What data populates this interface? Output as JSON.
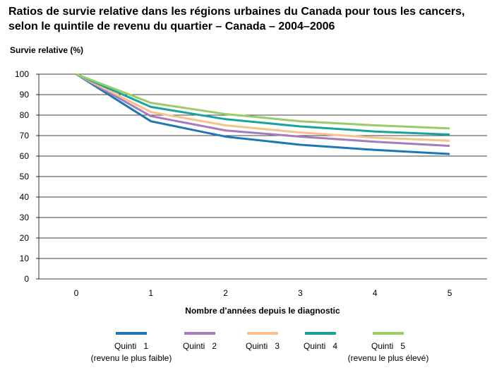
{
  "chart_data": {
    "type": "line",
    "title_lines": [
      "Ratios de survie relative dans les régions urbaines du Canada pour tous les cancers,",
      "selon le quintile de revenu du quartier – Canada – 2004–2006"
    ],
    "ylabel": "Survie relative (%)",
    "xlabel": "Nombre d’années depuis le diagnostic",
    "x": [
      0,
      1,
      2,
      3,
      4,
      5
    ],
    "xlim": [
      -0.5,
      5.5
    ],
    "ylim": [
      0,
      100
    ],
    "yticks": [
      0,
      10,
      20,
      30,
      40,
      50,
      60,
      70,
      80,
      90,
      100
    ],
    "grid": true,
    "legend_position": "bottom",
    "series": [
      {
        "name": "Quinti   1",
        "sublabel": "(revenu le plus faible)",
        "color": "#1f77b4",
        "values": [
          100,
          77,
          69.5,
          65.5,
          63,
          61
        ]
      },
      {
        "name": "Quinti   2",
        "sublabel": "",
        "color": "#a77bbd",
        "values": [
          100,
          79.5,
          72.5,
          69.5,
          67,
          65
        ]
      },
      {
        "name": "Quinti   3",
        "sublabel": "",
        "color": "#f7c28b",
        "values": [
          100,
          81.5,
          75,
          71.5,
          69,
          67.5
        ]
      },
      {
        "name": "Quinti   4",
        "sublabel": "",
        "color": "#1aa39a",
        "values": [
          100,
          84,
          78,
          74.5,
          72,
          70.5
        ]
      },
      {
        "name": "Quinti   5",
        "sublabel": "(revenu le plus élevé)",
        "color": "#9acd6a",
        "values": [
          100,
          86,
          80.5,
          77,
          75,
          73.5
        ]
      }
    ]
  }
}
